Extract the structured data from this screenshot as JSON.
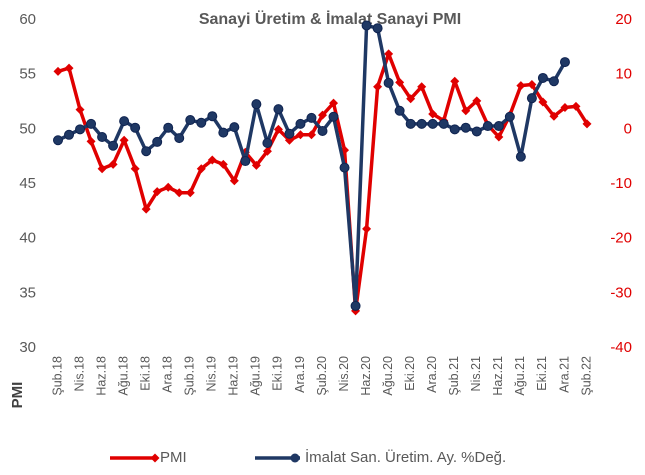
{
  "chart_data": {
    "type": "line",
    "title": "Sanayi Üretim & İmalat Sanayi PMI",
    "ylabel": "PMI",
    "categories": [
      "Şub.18",
      null,
      "Nis.18",
      null,
      "Haz.18",
      null,
      "Ağu.18",
      null,
      "Eki.18",
      null,
      "Ara.18",
      null,
      "Şub.19",
      null,
      "Nis.19",
      null,
      "Haz.19",
      null,
      "Ağu.19",
      null,
      "Eki.19",
      null,
      "Ara.19",
      null,
      "Şub.20",
      null,
      "Nis.20",
      null,
      "Haz.20",
      null,
      "Ağu.20",
      null,
      "Eki.20",
      null,
      "Ara.20",
      null,
      "Şub.21",
      null,
      "Nis.21",
      null,
      "Haz.21",
      null,
      "Ağu.21",
      null,
      "Eki.21",
      null,
      "Ara.21",
      null,
      "Şub.22"
    ],
    "ylim": [
      30,
      60
    ],
    "yticks": [
      30,
      35,
      40,
      45,
      50,
      55,
      60
    ],
    "y2lim": [
      -40,
      20
    ],
    "y2ticks": [
      -40,
      -30,
      -20,
      -10,
      0,
      10,
      20
    ],
    "series": [
      {
        "name": "PMI",
        "color": "#e00000",
        "marker": "diamond",
        "values": [
          55.3,
          55.6,
          51.8,
          48.9,
          46.4,
          46.8,
          49.0,
          46.4,
          42.7,
          44.3,
          44.7,
          44.2,
          44.2,
          46.4,
          47.2,
          46.8,
          45.3,
          47.9,
          46.7,
          48.0,
          50.0,
          49.0,
          49.5,
          49.5,
          51.3,
          52.4,
          48.1,
          33.4,
          40.9,
          53.9,
          56.9,
          54.3,
          52.8,
          53.9,
          51.4,
          50.8,
          54.4,
          51.7,
          52.6,
          50.4,
          49.3,
          51.3,
          54.0,
          54.1,
          52.5,
          51.2,
          52.0,
          52.1,
          50.5
        ]
      },
      {
        "name": "İmalat San. Üretim. Ay. %Değ.",
        "color": "#1f3864",
        "marker": "circle",
        "axis": "y2",
        "values": [
          -2,
          -1,
          0,
          1,
          -1.4,
          -3,
          1.5,
          0.3,
          -4,
          -2.3,
          0.3,
          -1.6,
          1.7,
          1.2,
          2.4,
          -0.6,
          0.4,
          -5.8,
          4.6,
          -2.5,
          3.7,
          -0.8,
          1,
          2.1,
          -0.3,
          2.3,
          -7,
          -32.3,
          19,
          18.5,
          8.5,
          3.4,
          1,
          1,
          1,
          1,
          0,
          0.3,
          -0.4,
          0.6,
          0.6,
          2.3,
          -5,
          5.7,
          9.4,
          8.8,
          12.3,
          null,
          null
        ]
      }
    ]
  }
}
